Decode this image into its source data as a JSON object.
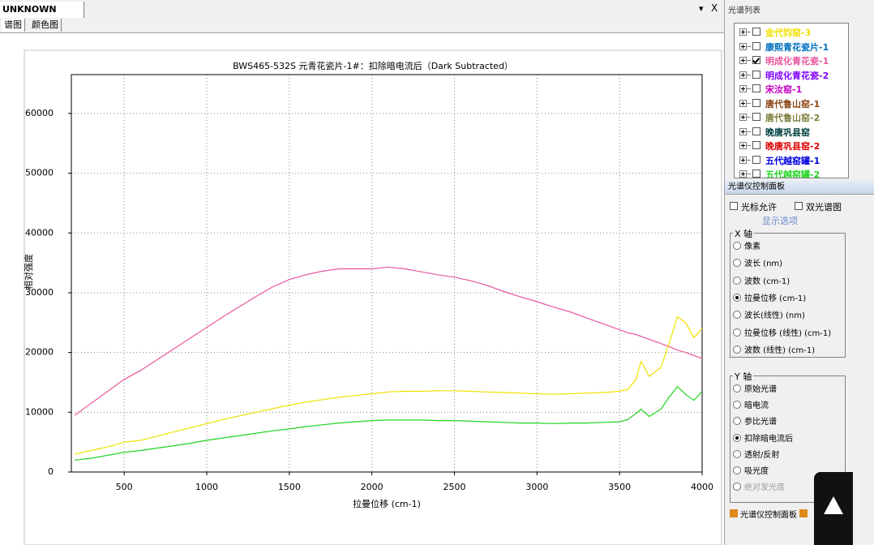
{
  "window": {
    "tab": "UNKNOWN",
    "menu_arrow": "▾",
    "close": "X",
    "subtabs": [
      "谱图",
      "颜色图"
    ]
  },
  "chart_data": {
    "type": "line",
    "title": "BWS465-532S 元青花瓷片-1#：扣除暗电流后（Dark Subtracted）",
    "x_label": "拉曼位移 (cm-1)",
    "y_label": "相对强度",
    "x": [
      200,
      300,
      400,
      500,
      600,
      700,
      800,
      900,
      1000,
      1100,
      1200,
      1300,
      1400,
      1500,
      1600,
      1700,
      1800,
      1900,
      2000,
      2100,
      2200,
      2300,
      2400,
      2500,
      2600,
      2700,
      2800,
      2900,
      3000,
      3100,
      3200,
      3300,
      3400,
      3500,
      3550,
      3600,
      3630,
      3680,
      3750,
      3800,
      3850,
      3900,
      3950,
      4000
    ],
    "series": [
      {
        "color": "#e8579e",
        "values": [
          9500,
          11500,
          13500,
          15500,
          17000,
          18800,
          20600,
          22400,
          24200,
          26000,
          27700,
          29400,
          31000,
          32200,
          33000,
          33600,
          34000,
          34000,
          34000,
          34300,
          34000,
          33500,
          33000,
          32600,
          32000,
          31200,
          30200,
          29300,
          28500,
          27600,
          26800,
          25800,
          24800,
          23800,
          23300,
          23000,
          22700,
          22200,
          21500,
          21000,
          20400,
          20000,
          19500,
          19000
        ]
      },
      {
        "color": "#f0e000",
        "values": [
          3000,
          3600,
          4200,
          5000,
          5300,
          6000,
          6700,
          7400,
          8100,
          8800,
          9400,
          10000,
          10600,
          11200,
          11700,
          12100,
          12500,
          12800,
          13100,
          13400,
          13500,
          13500,
          13600,
          13600,
          13500,
          13400,
          13300,
          13200,
          13100,
          13000,
          13100,
          13200,
          13300,
          13500,
          13800,
          15500,
          18500,
          16000,
          17500,
          21500,
          26000,
          25000,
          22500,
          24000
        ]
      },
      {
        "color": "#1ed41e",
        "values": [
          2000,
          2300,
          2800,
          3300,
          3600,
          4000,
          4400,
          4800,
          5300,
          5700,
          6100,
          6500,
          6900,
          7200,
          7600,
          7900,
          8200,
          8400,
          8600,
          8700,
          8700,
          8700,
          8600,
          8600,
          8500,
          8400,
          8300,
          8200,
          8200,
          8100,
          8200,
          8200,
          8300,
          8400,
          8800,
          9800,
          10500,
          9300,
          10500,
          12500,
          14300,
          13000,
          12000,
          13500
        ]
      }
    ],
    "xlim": [
      180,
      4000
    ],
    "xticks": [
      500,
      1000,
      1500,
      2000,
      2500,
      3000,
      3500,
      4000
    ],
    "ylim": [
      0,
      66500
    ],
    "yticks": [
      0,
      10000,
      20000,
      30000,
      40000,
      50000,
      60000
    ],
    "grid": true
  },
  "spectrum_list": {
    "title": "光谱列表",
    "items": [
      {
        "label": "金代钧窑-3",
        "color": "#f0e000",
        "checked": false
      },
      {
        "label": "康熙青花瓷片-1",
        "color": "#0070c0",
        "checked": false
      },
      {
        "label": "明成化青花瓷-1",
        "color": "#e8579e",
        "checked": true
      },
      {
        "label": "明成化青花瓷-2",
        "color": "#8000ff",
        "checked": false
      },
      {
        "label": "宋汝窑-1",
        "color": "#c000c0",
        "checked": false
      },
      {
        "label": "唐代鲁山窑-1",
        "color": "#8b4513",
        "checked": false
      },
      {
        "label": "唐代鲁山窑-2",
        "color": "#808040",
        "checked": false
      },
      {
        "label": "晚唐巩县窑",
        "color": "#004040",
        "checked": false
      },
      {
        "label": "晚唐巩县窑-2",
        "color": "#e00000",
        "checked": false
      },
      {
        "label": "五代越窑罐-1",
        "color": "#0000e0",
        "checked": false
      },
      {
        "label": "五代越窑罐-2",
        "color": "#1ed41e",
        "checked": false
      }
    ]
  },
  "control_panel": {
    "title": "光谱仪控制面板",
    "checkboxes": [
      "光标允许",
      "双光谱图"
    ],
    "display_options": "显示选项",
    "x_axis": {
      "label": "X 轴",
      "options": [
        "像素",
        "波长 (nm)",
        "波数 (cm-1)",
        "拉曼位移 (cm-1)",
        "波长(线性) (nm)",
        "拉曼位移 (线性) (cm-1)",
        "波数 (线性) (cm-1)"
      ],
      "selected": 3
    },
    "y_axis": {
      "label": "Y 轴",
      "options": [
        "原始光谱",
        "暗电流",
        "参比光谱",
        "扣除暗电流后",
        "透射/反射",
        "吸光度",
        "绝对发光度"
      ],
      "selected": 3,
      "disabled": 6
    },
    "bottom_tab": "光谱仪控制面板"
  }
}
